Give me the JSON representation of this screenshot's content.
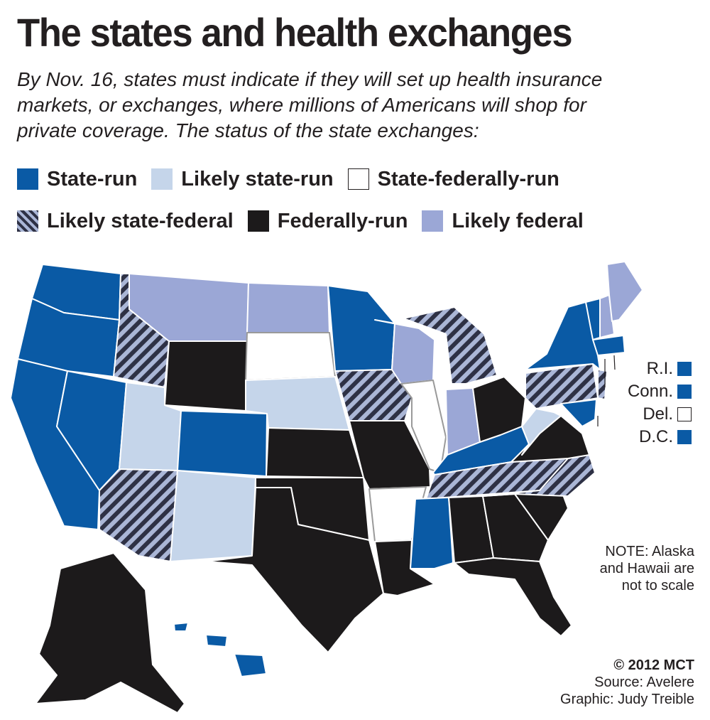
{
  "title": "The states and health exchanges",
  "subtitle_lines": [
    "By Nov. 16, states must indicate if they will set up health insurance",
    "markets, or exchanges, where millions of Americans will shop for",
    "private coverage. The status of the state exchanges:"
  ],
  "colors": {
    "state_run": "#0a5aa5",
    "likely_state_run": "#c5d5ea",
    "state_federally_run": "#ffffff",
    "likely_state_federal": "hatched #2e3145 / #aab6d6",
    "federally_run": "#1c1a1b",
    "likely_federal": "#9ba7d6",
    "background": "#ffffff",
    "border": "#231f20"
  },
  "legend": [
    {
      "label": "State-run",
      "category": "state_run"
    },
    {
      "label": "Likely state-run",
      "category": "likely_state_run"
    },
    {
      "label": "State-federally-run",
      "category": "state_federally_run"
    },
    {
      "label": "Likely state-federal",
      "category": "likely_state_federal"
    },
    {
      "label": "Federally-run",
      "category": "federally_run"
    },
    {
      "label": "Likely federal",
      "category": "likely_federal"
    }
  ],
  "small_states": [
    {
      "label": "R.I.",
      "category": "state_run"
    },
    {
      "label": "Conn.",
      "category": "state_run"
    },
    {
      "label": "Del.",
      "category": "state_federally_run"
    },
    {
      "label": "D.C.",
      "category": "state_run"
    }
  ],
  "map_states": {
    "WA": "state_run",
    "OR": "state_run",
    "CA": "state_run",
    "NV": "state_run",
    "ID": "likely_state_federal",
    "MT": "likely_federal",
    "WY": "federally_run",
    "UT": "likely_state_run",
    "AZ": "likely_state_federal",
    "CO": "state_run",
    "NM": "likely_state_run",
    "ND": "likely_federal",
    "SD": "state_federally_run",
    "NE": "likely_state_run",
    "KS": "federally_run",
    "OK": "federally_run",
    "TX": "federally_run",
    "MN": "state_run",
    "IA": "likely_state_federal",
    "MO": "federally_run",
    "AR": "state_federally_run",
    "LA": "federally_run",
    "WI": "likely_federal",
    "IL": "state_federally_run",
    "MI": "likely_state_federal",
    "IN": "likely_federal",
    "OH": "federally_run",
    "KY": "state_run",
    "TN": "likely_state_federal",
    "MS": "state_run",
    "AL": "federally_run",
    "GA": "federally_run",
    "FL": "federally_run",
    "SC": "federally_run",
    "NC": "likely_state_federal",
    "VA": "federally_run",
    "WV": "likely_state_run",
    "PA": "likely_state_federal",
    "NY": "state_run",
    "VT": "state_run",
    "NH": "likely_federal",
    "ME": "likely_federal",
    "MA": "state_run",
    "MD": "state_run",
    "NJ": "likely_state_federal",
    "AK": "federally_run",
    "HI": "state_run"
  },
  "note": [
    "NOTE: Alaska",
    "and Hawaii are",
    "not to scale"
  ],
  "credits": {
    "copyright": "© 2012 MCT",
    "source": "Source: Avelere",
    "graphic": "Graphic: Judy Treible"
  }
}
